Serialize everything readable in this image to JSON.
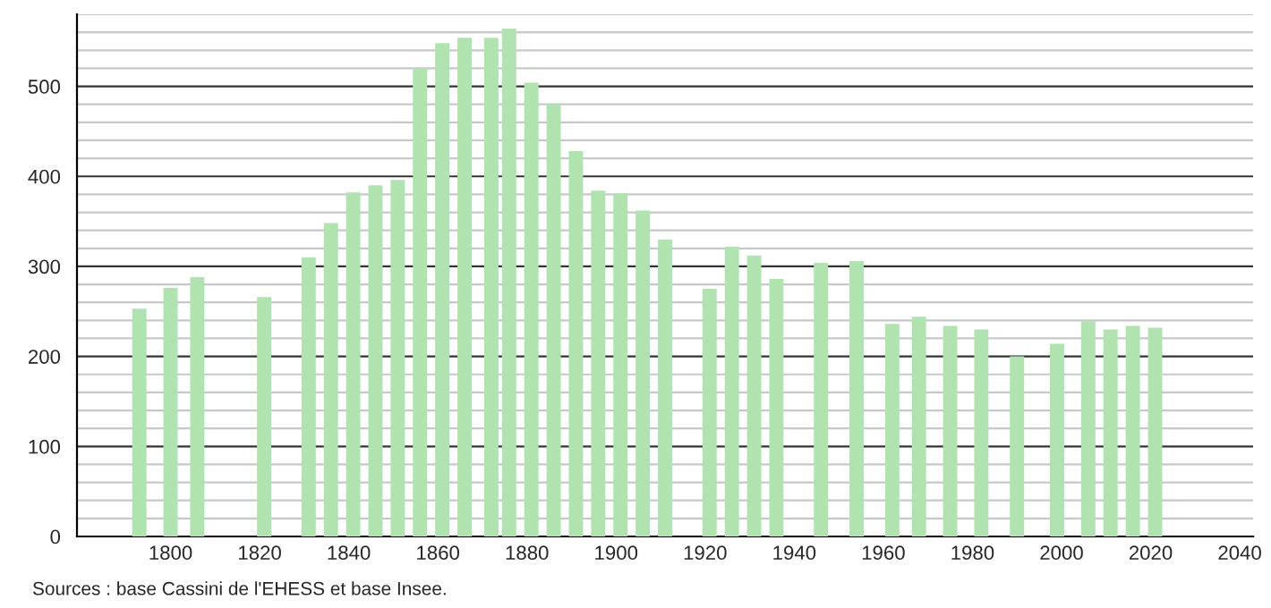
{
  "chart_data": {
    "type": "bar",
    "color": "#b0e3b0",
    "x": [
      1793,
      1800,
      1806,
      1821,
      1831,
      1836,
      1841,
      1846,
      1851,
      1856,
      1861,
      1866,
      1872,
      1876,
      1881,
      1886,
      1891,
      1896,
      1901,
      1906,
      1911,
      1921,
      1926,
      1931,
      1936,
      1946,
      1954,
      1962,
      1968,
      1975,
      1982,
      1990,
      1999,
      2006,
      2011,
      2016,
      2021
    ],
    "values": [
      253,
      276,
      288,
      266,
      310,
      348,
      382,
      390,
      396,
      520,
      548,
      554,
      554,
      564,
      504,
      480,
      428,
      384,
      381,
      362,
      330,
      275,
      322,
      312,
      286,
      304,
      306,
      236,
      244,
      234,
      230,
      200,
      214,
      239,
      230,
      234,
      232
    ],
    "xlim": [
      1779,
      2043
    ],
    "xticks": [
      1800,
      1820,
      1840,
      1860,
      1880,
      1900,
      1920,
      1940,
      1960,
      1980,
      2000,
      2020,
      2040
    ],
    "ylim": [
      0,
      580
    ],
    "yticks": [
      0,
      {
        "value": 20,
        "label": null
      },
      {
        "value": 40,
        "label": null
      },
      {
        "value": 60,
        "label": null
      },
      {
        "value": 80,
        "label": null
      },
      100,
      {
        "value": 120,
        "label": null
      },
      {
        "value": 140,
        "label": null
      },
      {
        "value": 160,
        "label": null
      },
      {
        "value": 180,
        "label": null
      },
      200,
      {
        "value": 220,
        "label": null
      },
      {
        "value": 240,
        "label": null
      },
      {
        "value": 260,
        "label": null
      },
      {
        "value": 280,
        "label": null
      },
      300,
      {
        "value": 320,
        "label": null
      },
      {
        "value": 340,
        "label": null
      },
      {
        "value": 360,
        "label": null
      },
      {
        "value": 380,
        "label": null
      },
      400,
      {
        "value": 420,
        "label": null
      },
      {
        "value": 440,
        "label": null
      },
      {
        "value": 460,
        "label": null
      },
      {
        "value": 480,
        "label": null
      },
      500,
      {
        "value": 520,
        "label": null
      },
      {
        "value": 540,
        "label": null
      },
      {
        "value": 560,
        "label": null
      },
      {
        "value": 580,
        "label": null
      }
    ],
    "grid": "y",
    "annotations": [
      "Sources : base Cassini de l'EHESS et base Insee."
    ]
  }
}
